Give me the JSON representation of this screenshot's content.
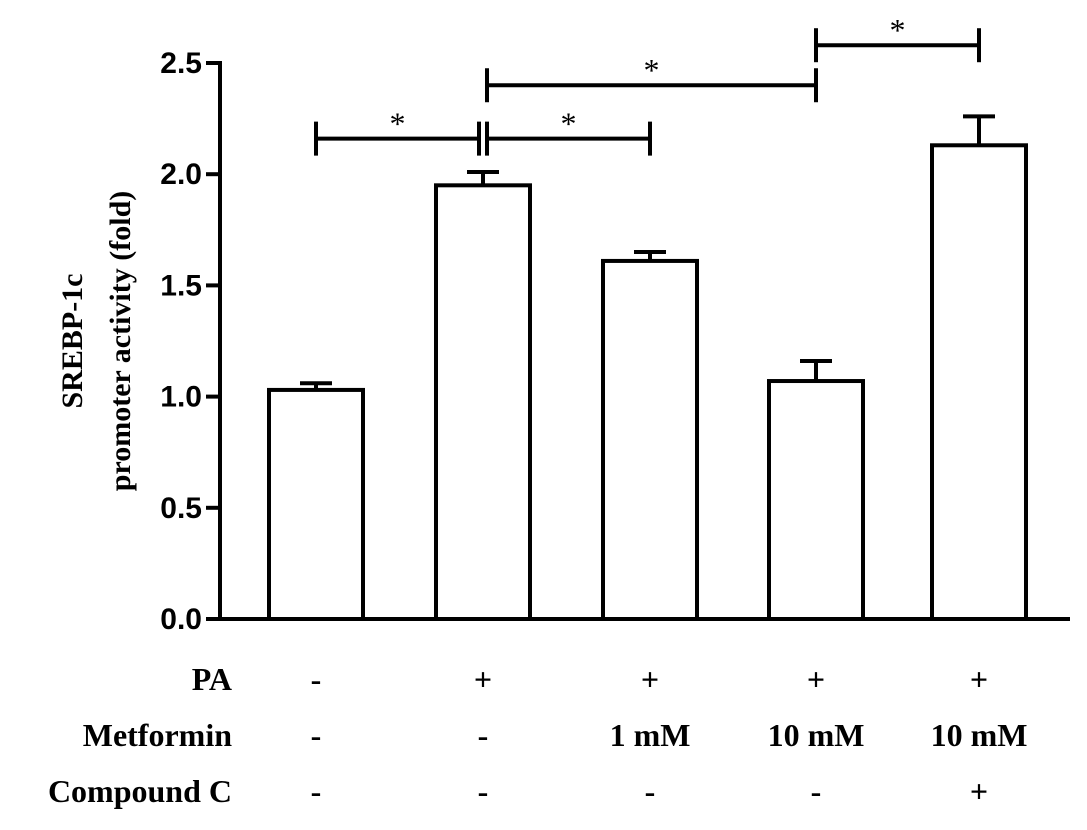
{
  "chart_data": {
    "type": "bar",
    "ylabel": [
      "SREBP-1c",
      "promoter activity (fold)"
    ],
    "ylim": [
      0,
      2.5
    ],
    "yticks": [
      "0.0",
      "0.5",
      "1.0",
      "1.5",
      "2.0",
      "2.5"
    ],
    "bars": [
      {
        "value": 1.03,
        "error": 0.03
      },
      {
        "value": 1.95,
        "error": 0.06
      },
      {
        "value": 1.61,
        "error": 0.04
      },
      {
        "value": 1.07,
        "error": 0.09
      },
      {
        "value": 2.13,
        "error": 0.13
      }
    ],
    "significance": [
      {
        "from": 0,
        "to": 1,
        "level": 2.16,
        "label": "*"
      },
      {
        "from": 1,
        "to": 2,
        "level": 2.16,
        "label": "*"
      },
      {
        "from": 1,
        "to": 3,
        "level": 2.4,
        "label": "*"
      },
      {
        "from": 3,
        "to": 4,
        "level": 2.58,
        "label": "*"
      }
    ],
    "conditions": [
      {
        "label": "PA",
        "values": [
          "-",
          "+",
          "+",
          "+",
          "+"
        ]
      },
      {
        "label": "Metformin",
        "values": [
          "-",
          "-",
          "1 mM",
          "10 mM",
          "10 mM"
        ]
      },
      {
        "label": "Compound C",
        "values": [
          "-",
          "-",
          "-",
          "-",
          "+"
        ]
      }
    ],
    "grid": false,
    "colors": {
      "bar_fill": "#ffffff",
      "stroke": "#000000"
    }
  }
}
